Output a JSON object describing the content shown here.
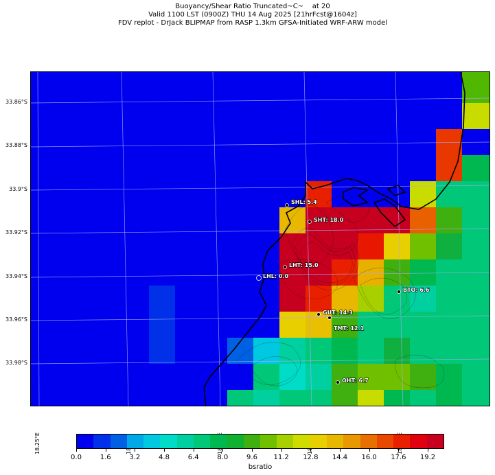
{
  "title": {
    "line1": "Buoyancy/Shear Ratio Truncated~C~    at 20",
    "line2": "Valid 1100 LST (0900Z) THU 14 Aug 2025 [21hrFcst@1604z]",
    "line3": "FDV replot - DrJack BLIPMAP from RASP 1.3km GFSA-Initiated WRF-ARW model"
  },
  "lat_labels": [
    "33.86°S",
    "33.88°S",
    "33.9°S",
    "33.92°S",
    "33.94°S",
    "33.96°S",
    "33.98°S"
  ],
  "lon_labels": [
    "18.25°E",
    "18.3°E",
    "18.35°E",
    "18.4°E",
    "18.45°E"
  ],
  "stations": [
    {
      "id": "SHL",
      "label": "SHL: 5.4",
      "value": 5.4
    },
    {
      "id": "SHT",
      "label": "SHT: 18.0",
      "value": 18.0
    },
    {
      "id": "LHT",
      "label": "LHT: 15.0",
      "value": 15.0
    },
    {
      "id": "LHL",
      "label": "LHL: 0.0",
      "value": 0.0
    },
    {
      "id": "BTO",
      "label": "BTO: 6.6",
      "value": 6.6
    },
    {
      "id": "GUT",
      "label": "GUT: 14.3",
      "value": 14.3
    },
    {
      "id": "TMT",
      "label": "TMT: 12.1",
      "value": 12.1
    },
    {
      "id": "OHT",
      "label": "OHT: 6.7",
      "value": 6.7
    }
  ],
  "colorbar": {
    "label": "bsratio",
    "tick_labels": [
      "0.0",
      "1.6",
      "3.2",
      "4.8",
      "6.4",
      "8.0",
      "9.6",
      "11.2",
      "12.8",
      "14.4",
      "16.0",
      "17.6",
      "19.2"
    ],
    "colors": [
      "#0000ee",
      "#0030e8",
      "#0060e4",
      "#00a8e8",
      "#00c8e0",
      "#00dcc8",
      "#00d0a0",
      "#00c878",
      "#00b850",
      "#10b030",
      "#40b010",
      "#70c000",
      "#a8d000",
      "#d0dc00",
      "#e8d000",
      "#e8b800",
      "#e89800",
      "#e87000",
      "#e84800",
      "#e82000",
      "#e00010",
      "#c80020"
    ]
  },
  "colors": {
    "background_field": "#0000ee",
    "coastline": "#000000",
    "grid": "#aaaaff"
  },
  "chart_data": {
    "type": "heatmap",
    "variable": "bsratio",
    "value_range": [
      0.0,
      20.0
    ],
    "note": "gridded field over Cape Peninsula, South Africa",
    "stations": [
      {
        "name": "SHL",
        "value": 5.4
      },
      {
        "name": "SHT",
        "value": 18.0
      },
      {
        "name": "LHT",
        "value": 15.0
      },
      {
        "name": "LHL",
        "value": 0.0
      },
      {
        "name": "BTO",
        "value": 6.6
      },
      {
        "name": "GUT",
        "value": 14.3
      },
      {
        "name": "TMT",
        "value": 12.1
      },
      {
        "name": "OHT",
        "value": 6.7
      }
    ]
  }
}
